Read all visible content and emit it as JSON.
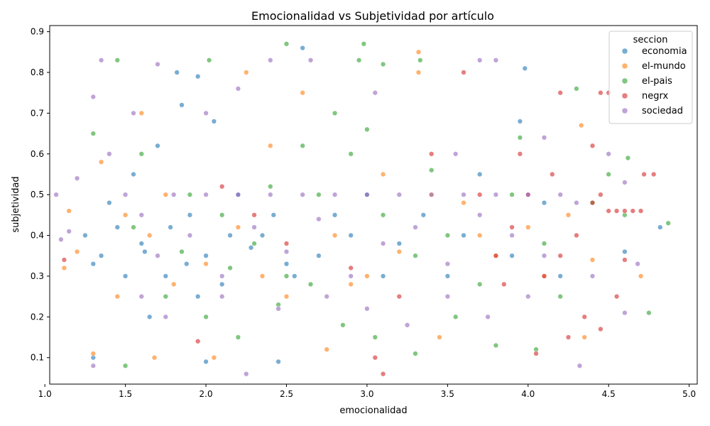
{
  "chart_data": {
    "type": "scatter",
    "title": "Emocionalidad vs Subjetividad por artículo",
    "xlabel": "emocionalidad",
    "ylabel": "subjetividad",
    "xlim": [
      1.03,
      5.05
    ],
    "ylim": [
      0.035,
      0.915
    ],
    "x_ticks": [
      1.0,
      1.5,
      2.0,
      2.5,
      3.0,
      3.5,
      4.0,
      4.5,
      5.0
    ],
    "y_ticks": [
      0.1,
      0.2,
      0.3,
      0.4,
      0.5,
      0.6,
      0.7,
      0.8,
      0.9
    ],
    "x_tick_labels": [
      "1.0",
      "1.5",
      "2.0",
      "2.5",
      "3.0",
      "3.5",
      "4.0",
      "4.5",
      "5.0"
    ],
    "y_tick_labels": [
      "0.1",
      "0.2",
      "0.3",
      "0.4",
      "0.5",
      "0.6",
      "0.7",
      "0.8",
      "0.9"
    ],
    "grid": false,
    "legend": {
      "title": "seccion",
      "placement": "top-right"
    },
    "series": [
      {
        "name": "economia",
        "color": "#1f77b4",
        "points": [
          [
            1.3,
            0.33
          ],
          [
            1.45,
            0.42
          ],
          [
            1.6,
            0.38
          ],
          [
            1.75,
            0.3
          ],
          [
            1.9,
            0.45
          ],
          [
            2.0,
            0.35
          ],
          [
            2.1,
            0.28
          ],
          [
            2.2,
            0.5
          ],
          [
            2.35,
            0.4
          ],
          [
            2.5,
            0.33
          ],
          [
            1.55,
            0.55
          ],
          [
            1.7,
            0.62
          ],
          [
            1.85,
            0.72
          ],
          [
            1.95,
            0.25
          ],
          [
            2.05,
            0.68
          ],
          [
            2.6,
            0.86
          ],
          [
            1.82,
            0.8
          ],
          [
            1.95,
            0.79
          ],
          [
            3.98,
            0.81
          ],
          [
            3.95,
            0.68
          ],
          [
            4.82,
            0.42
          ],
          [
            2.45,
            0.09
          ],
          [
            1.3,
            0.1
          ],
          [
            2.0,
            0.09
          ],
          [
            1.65,
            0.2
          ],
          [
            2.8,
            0.45
          ],
          [
            3.0,
            0.5
          ],
          [
            3.2,
            0.38
          ],
          [
            3.5,
            0.3
          ],
          [
            3.7,
            0.55
          ],
          [
            4.1,
            0.48
          ],
          [
            1.4,
            0.48
          ],
          [
            1.5,
            0.3
          ],
          [
            1.62,
            0.36
          ],
          [
            1.78,
            0.42
          ],
          [
            1.88,
            0.33
          ],
          [
            2.15,
            0.4
          ],
          [
            2.28,
            0.37
          ],
          [
            2.42,
            0.45
          ],
          [
            2.55,
            0.3
          ],
          [
            2.7,
            0.35
          ],
          [
            2.9,
            0.4
          ],
          [
            3.1,
            0.3
          ],
          [
            3.35,
            0.45
          ],
          [
            3.6,
            0.4
          ],
          [
            3.9,
            0.35
          ],
          [
            4.2,
            0.3
          ],
          [
            4.6,
            0.36
          ],
          [
            1.25,
            0.4
          ],
          [
            1.35,
            0.35
          ]
        ]
      },
      {
        "name": "el-mundo",
        "color": "#ff7f0e",
        "points": [
          [
            1.12,
            0.32
          ],
          [
            1.2,
            0.36
          ],
          [
            1.35,
            0.58
          ],
          [
            1.5,
            0.45
          ],
          [
            1.65,
            0.4
          ],
          [
            1.8,
            0.28
          ],
          [
            2.0,
            0.33
          ],
          [
            2.2,
            0.42
          ],
          [
            2.25,
            0.8
          ],
          [
            2.6,
            0.75
          ],
          [
            3.32,
            0.85
          ],
          [
            3.32,
            0.8
          ],
          [
            3.0,
            0.3
          ],
          [
            3.4,
            0.5
          ],
          [
            3.8,
            0.35
          ],
          [
            4.25,
            0.45
          ],
          [
            4.33,
            0.67
          ],
          [
            4.4,
            0.34
          ],
          [
            4.7,
            0.3
          ],
          [
            1.68,
            0.1
          ],
          [
            2.05,
            0.1
          ],
          [
            1.3,
            0.11
          ],
          [
            2.75,
            0.12
          ],
          [
            3.45,
            0.15
          ],
          [
            4.35,
            0.15
          ],
          [
            2.5,
            0.25
          ],
          [
            2.8,
            0.4
          ],
          [
            3.1,
            0.55
          ],
          [
            3.6,
            0.48
          ],
          [
            4.0,
            0.42
          ],
          [
            1.45,
            0.25
          ],
          [
            1.75,
            0.5
          ],
          [
            2.35,
            0.3
          ],
          [
            2.9,
            0.28
          ],
          [
            3.2,
            0.36
          ],
          [
            3.7,
            0.4
          ],
          [
            4.1,
            0.3
          ],
          [
            1.15,
            0.46
          ],
          [
            1.6,
            0.7
          ],
          [
            2.4,
            0.62
          ]
        ]
      },
      {
        "name": "el-pais",
        "color": "#2ca02c",
        "points": [
          [
            1.45,
            0.83
          ],
          [
            1.5,
            0.08
          ],
          [
            2.02,
            0.83
          ],
          [
            2.5,
            0.87
          ],
          [
            2.98,
            0.87
          ],
          [
            3.1,
            0.82
          ],
          [
            2.95,
            0.83
          ],
          [
            3.33,
            0.83
          ],
          [
            4.3,
            0.76
          ],
          [
            4.62,
            0.59
          ],
          [
            4.87,
            0.43
          ],
          [
            4.75,
            0.21
          ],
          [
            1.3,
            0.65
          ],
          [
            1.6,
            0.6
          ],
          [
            1.9,
            0.5
          ],
          [
            2.1,
            0.45
          ],
          [
            2.3,
            0.38
          ],
          [
            2.5,
            0.3
          ],
          [
            2.7,
            0.5
          ],
          [
            2.9,
            0.6
          ],
          [
            3.1,
            0.45
          ],
          [
            3.3,
            0.35
          ],
          [
            3.5,
            0.4
          ],
          [
            3.7,
            0.28
          ],
          [
            3.9,
            0.5
          ],
          [
            4.1,
            0.38
          ],
          [
            4.4,
            0.48
          ],
          [
            4.6,
            0.45
          ],
          [
            1.75,
            0.25
          ],
          [
            2.0,
            0.2
          ],
          [
            2.2,
            0.15
          ],
          [
            2.45,
            0.23
          ],
          [
            2.65,
            0.28
          ],
          [
            2.85,
            0.18
          ],
          [
            3.05,
            0.15
          ],
          [
            3.3,
            0.11
          ],
          [
            3.55,
            0.2
          ],
          [
            3.8,
            0.13
          ],
          [
            4.05,
            0.12
          ],
          [
            4.2,
            0.25
          ],
          [
            1.85,
            0.36
          ],
          [
            2.15,
            0.32
          ],
          [
            2.4,
            0.52
          ],
          [
            2.6,
            0.62
          ],
          [
            3.0,
            0.66
          ],
          [
            3.4,
            0.56
          ],
          [
            3.95,
            0.64
          ],
          [
            4.5,
            0.55
          ],
          [
            1.55,
            0.42
          ],
          [
            2.8,
            0.7
          ]
        ]
      },
      {
        "name": "negrx",
        "color": "#d62728",
        "points": [
          [
            4.78,
            0.55
          ],
          [
            4.72,
            0.55
          ],
          [
            4.7,
            0.46
          ],
          [
            4.65,
            0.46
          ],
          [
            4.6,
            0.46
          ],
          [
            4.55,
            0.46
          ],
          [
            4.5,
            0.46
          ],
          [
            4.45,
            0.5
          ],
          [
            4.4,
            0.48
          ],
          [
            4.3,
            0.4
          ],
          [
            4.2,
            0.35
          ],
          [
            4.1,
            0.3
          ],
          [
            4.0,
            0.5
          ],
          [
            3.9,
            0.42
          ],
          [
            3.8,
            0.35
          ],
          [
            4.25,
            0.15
          ],
          [
            4.45,
            0.17
          ],
          [
            4.05,
            0.11
          ],
          [
            3.05,
            0.1
          ],
          [
            3.1,
            0.06
          ],
          [
            3.6,
            0.8
          ],
          [
            4.2,
            0.75
          ],
          [
            4.45,
            0.75
          ],
          [
            4.5,
            0.75
          ],
          [
            3.85,
            0.28
          ],
          [
            4.35,
            0.2
          ],
          [
            4.55,
            0.25
          ],
          [
            4.6,
            0.34
          ],
          [
            3.4,
            0.6
          ],
          [
            3.7,
            0.5
          ],
          [
            2.1,
            0.52
          ],
          [
            2.3,
            0.45
          ],
          [
            2.5,
            0.38
          ],
          [
            2.9,
            0.32
          ],
          [
            3.2,
            0.25
          ],
          [
            1.12,
            0.34
          ],
          [
            1.95,
            0.14
          ],
          [
            4.4,
            0.62
          ],
          [
            4.15,
            0.55
          ],
          [
            3.95,
            0.6
          ]
        ]
      },
      {
        "name": "sociedad",
        "color": "#9467bd",
        "points": [
          [
            1.07,
            0.5
          ],
          [
            1.1,
            0.39
          ],
          [
            1.15,
            0.41
          ],
          [
            1.2,
            0.54
          ],
          [
            1.3,
            0.74
          ],
          [
            1.35,
            0.83
          ],
          [
            1.7,
            0.82
          ],
          [
            2.25,
            0.06
          ],
          [
            2.4,
            0.83
          ],
          [
            2.65,
            0.83
          ],
          [
            3.7,
            0.83
          ],
          [
            3.8,
            0.83
          ],
          [
            4.32,
            0.08
          ],
          [
            4.6,
            0.53
          ],
          [
            4.6,
            0.21
          ],
          [
            1.3,
            0.08
          ],
          [
            1.5,
            0.5
          ],
          [
            1.6,
            0.45
          ],
          [
            1.7,
            0.35
          ],
          [
            1.8,
            0.5
          ],
          [
            1.9,
            0.4
          ],
          [
            2.0,
            0.5
          ],
          [
            2.1,
            0.3
          ],
          [
            2.2,
            0.5
          ],
          [
            2.3,
            0.42
          ],
          [
            2.4,
            0.5
          ],
          [
            2.5,
            0.36
          ],
          [
            2.6,
            0.5
          ],
          [
            2.7,
            0.44
          ],
          [
            2.8,
            0.5
          ],
          [
            2.9,
            0.3
          ],
          [
            3.0,
            0.5
          ],
          [
            3.1,
            0.38
          ],
          [
            3.2,
            0.5
          ],
          [
            3.3,
            0.42
          ],
          [
            3.4,
            0.5
          ],
          [
            3.5,
            0.33
          ],
          [
            3.6,
            0.5
          ],
          [
            3.7,
            0.45
          ],
          [
            3.8,
            0.5
          ],
          [
            3.9,
            0.4
          ],
          [
            4.0,
            0.5
          ],
          [
            4.1,
            0.35
          ],
          [
            4.2,
            0.5
          ],
          [
            4.3,
            0.48
          ],
          [
            1.4,
            0.6
          ],
          [
            1.55,
            0.7
          ],
          [
            2.0,
            0.7
          ],
          [
            2.2,
            0.76
          ],
          [
            3.05,
            0.75
          ],
          [
            3.55,
            0.6
          ],
          [
            4.1,
            0.64
          ],
          [
            4.5,
            0.6
          ],
          [
            1.6,
            0.25
          ],
          [
            1.75,
            0.2
          ],
          [
            2.1,
            0.25
          ],
          [
            2.45,
            0.22
          ],
          [
            2.75,
            0.25
          ],
          [
            3.0,
            0.22
          ],
          [
            3.25,
            0.18
          ],
          [
            3.5,
            0.25
          ],
          [
            3.75,
            0.2
          ],
          [
            4.0,
            0.25
          ],
          [
            4.4,
            0.3
          ],
          [
            4.68,
            0.33
          ]
        ]
      }
    ]
  }
}
